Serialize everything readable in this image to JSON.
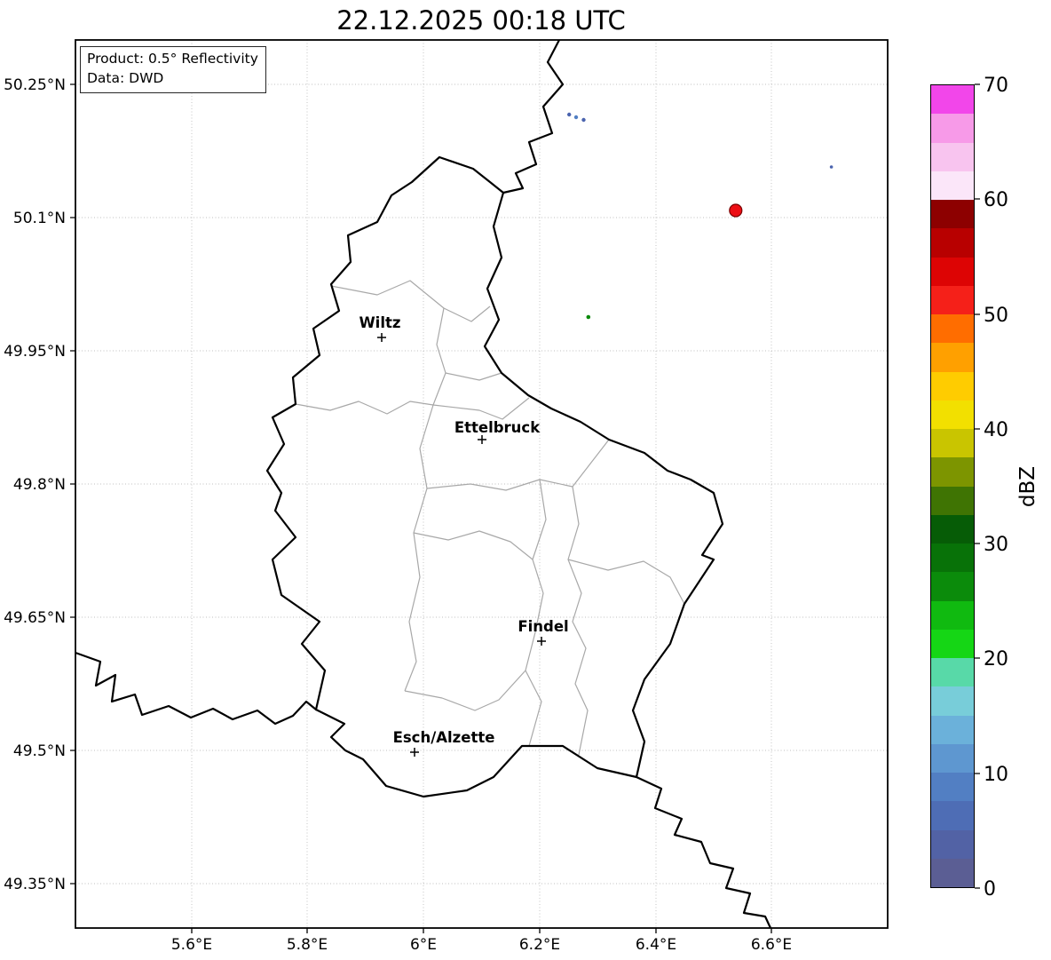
{
  "title": "22.12.2025 00:18 UTC",
  "info_box": {
    "product_line": "Product: 0.5° Reflectivity",
    "data_line": "Data: DWD"
  },
  "axes": {
    "lat_ticks": [
      "50.25°N",
      "50.1°N",
      "49.95°N",
      "49.8°N",
      "49.65°N",
      "49.5°N",
      "49.35°N"
    ],
    "lon_ticks": [
      "5.6°E",
      "5.8°E",
      "6°E",
      "6.2°E",
      "6.4°E",
      "6.6°E"
    ],
    "lon_range": [
      5.4,
      6.8
    ],
    "lat_range": [
      49.3,
      50.3
    ]
  },
  "cities": [
    {
      "name": "Wiltz",
      "lon": 5.928,
      "lat": 49.965
    },
    {
      "name": "Ettelbruck",
      "lon": 6.101,
      "lat": 49.85
    },
    {
      "name": "Findel",
      "lon": 6.203,
      "lat": 49.623
    },
    {
      "name": "Esch/Alzette",
      "lon": 5.984,
      "lat": 49.498
    }
  ],
  "colorbar": {
    "label": "dBZ",
    "ticks": [
      "0",
      "10",
      "20",
      "30",
      "40",
      "50",
      "60",
      "70"
    ],
    "value_min": 0,
    "value_max": 70,
    "step_dbz": 2.5,
    "colors_bottom_to_top": [
      "#5b5e94",
      "#5262a5",
      "#4e6db5",
      "#527fc3",
      "#5e97d0",
      "#6bb1da",
      "#78cdd9",
      "#58d9a8",
      "#15d615",
      "#10ba10",
      "#0b8b0b",
      "#087208",
      "#065c06",
      "#3f7403",
      "#7d9500",
      "#c9c500",
      "#f2e000",
      "#ffcc00",
      "#ffa000",
      "#ff6d00",
      "#f52019",
      "#dd0404",
      "#b80000",
      "#8d0000",
      "#fbe6f9",
      "#f8c4ef",
      "#f79ae8",
      "#f246ea"
    ]
  },
  "map": {
    "echoes": [
      {
        "name": "echo-cell-strong",
        "lon": 6.538,
        "lat": 50.108,
        "approx_dbz": 50,
        "color": "#ed0e14",
        "r": 7
      },
      {
        "name": "echo-drizzle-a",
        "lon": 6.251,
        "lat": 50.216,
        "approx_dbz": 8,
        "color": "#4a63ae",
        "r": 2.2
      },
      {
        "name": "echo-drizzle-b",
        "lon": 6.263,
        "lat": 50.213,
        "approx_dbz": 10,
        "color": "#527fc3",
        "r": 2.2
      },
      {
        "name": "echo-drizzle-c",
        "lon": 6.276,
        "lat": 50.21,
        "approx_dbz": 8,
        "color": "#4a63ae",
        "r": 2.2
      },
      {
        "name": "echo-speck-east",
        "lon": 6.703,
        "lat": 50.157,
        "approx_dbz": 8,
        "color": "#4a63ae",
        "r": 1.8
      },
      {
        "name": "echo-speck-green",
        "lon": 6.284,
        "lat": 49.988,
        "approx_dbz": 28,
        "color": "#0c8a0c",
        "r": 2.3
      }
    ]
  }
}
